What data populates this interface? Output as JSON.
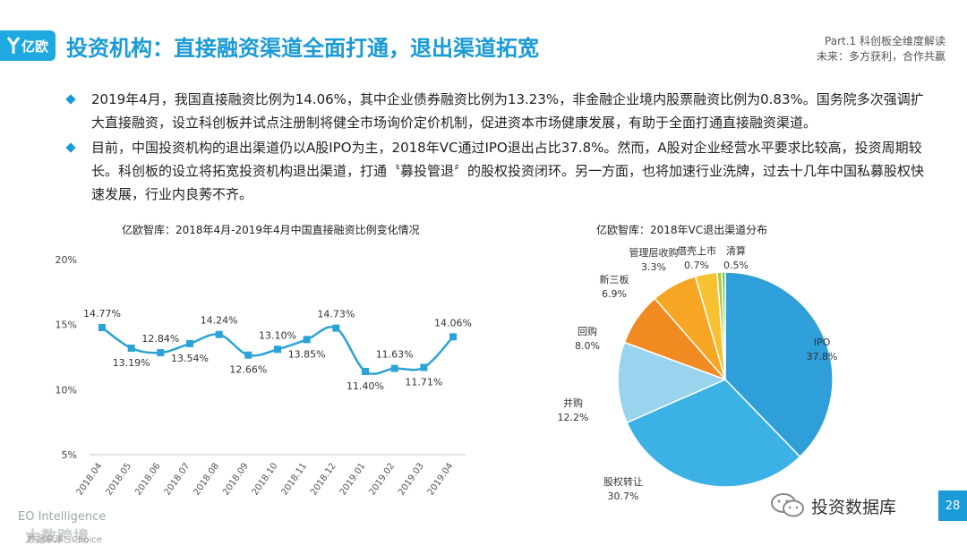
{
  "header": {
    "logo_text": "亿欧",
    "title": "投资机构：直接融资渠道全面打通，退出渠道拓宽",
    "part_line1": "Part.1  科创板全维度解读",
    "part_line2": "未来：多方获利，合作共赢"
  },
  "bullets": [
    "2019年4月，我国直接融资比例为14.06%，其中企业债券融资比例为13.23%，非金融企业境内股票融资比例为0.83%。国务院多次强调扩大直接融资，设立科创板并试点注册制将健全市场询价定价机制，促进资本市场健康发展，有助于全面打通直接融资渠道。",
    "目前，中国投资机构的退出渠道仍以A股IPO为主，2018年VC通过IPO退出占比37.8%。然而，A股对企业经营水平要求比较高，投资周期较长。科创板的设立将拓宽投资机构退出渠道，打通〝募投管退〞的股权投资闭环。另一方面，也将加速行业洗牌，过去十几年中国私募股权快速发展，行业内良莠不齐。"
  ],
  "footer": {
    "brand": "EO Intelligence",
    "watermark": "大数跨境",
    "source": "数据来源：Choice",
    "wechat_name": "投资数据库",
    "page_number": "28"
  },
  "colors": {
    "accent": "#1a9ad6",
    "line": "#2aa3d8"
  },
  "chart_data": [
    {
      "type": "line",
      "title": "亿欧智库：2018年4月-2019年4月中国直接融资比例变化情况",
      "categories": [
        "2018.04",
        "2018.05",
        "2018.06",
        "2018.07",
        "2018.08",
        "2018.09",
        "2018.10",
        "2018.11",
        "2018.12",
        "2019.01",
        "2019.02",
        "2019.03",
        "2019.04"
      ],
      "values": [
        14.77,
        13.19,
        12.84,
        13.54,
        14.24,
        12.66,
        13.1,
        13.85,
        14.73,
        11.4,
        11.63,
        11.71,
        14.06
      ],
      "data_labels": [
        "14.77%",
        "13.19%",
        "12.84%",
        "13.54%",
        "14.24%",
        "12.66%",
        "13.10%",
        "13.85%",
        "14.73%",
        "11.40%",
        "11.63%",
        "11.71%",
        "14.06%"
      ],
      "yticks": [
        "20%",
        "15%",
        "10%",
        "5%"
      ],
      "ylim": [
        5,
        20
      ],
      "grid": false
    },
    {
      "type": "pie",
      "title": "亿欧智库：2018年VC退出渠道分布",
      "slices": [
        {
          "label": "IPO",
          "value": 37.8,
          "text": "37.8%",
          "color": "#2e9fd9"
        },
        {
          "label": "股权转让",
          "value": 30.7,
          "text": "30.7%",
          "color": "#3cb1e6"
        },
        {
          "label": "并购",
          "value": 12.2,
          "text": "12.2%",
          "color": "#9ad3ee"
        },
        {
          "label": "回购",
          "value": 8.0,
          "text": "8.0%",
          "color": "#f28a22"
        },
        {
          "label": "新三板",
          "value": 6.9,
          "text": "6.9%",
          "color": "#f6a623"
        },
        {
          "label": "管理层收购",
          "value": 3.3,
          "text": "3.3%",
          "color": "#f7c232"
        },
        {
          "label": "借壳上市",
          "value": 0.7,
          "text": "0.7%",
          "color": "#a9c94a"
        },
        {
          "label": "清算",
          "value": 0.5,
          "text": "0.5%",
          "color": "#7bbf4a"
        }
      ]
    }
  ]
}
